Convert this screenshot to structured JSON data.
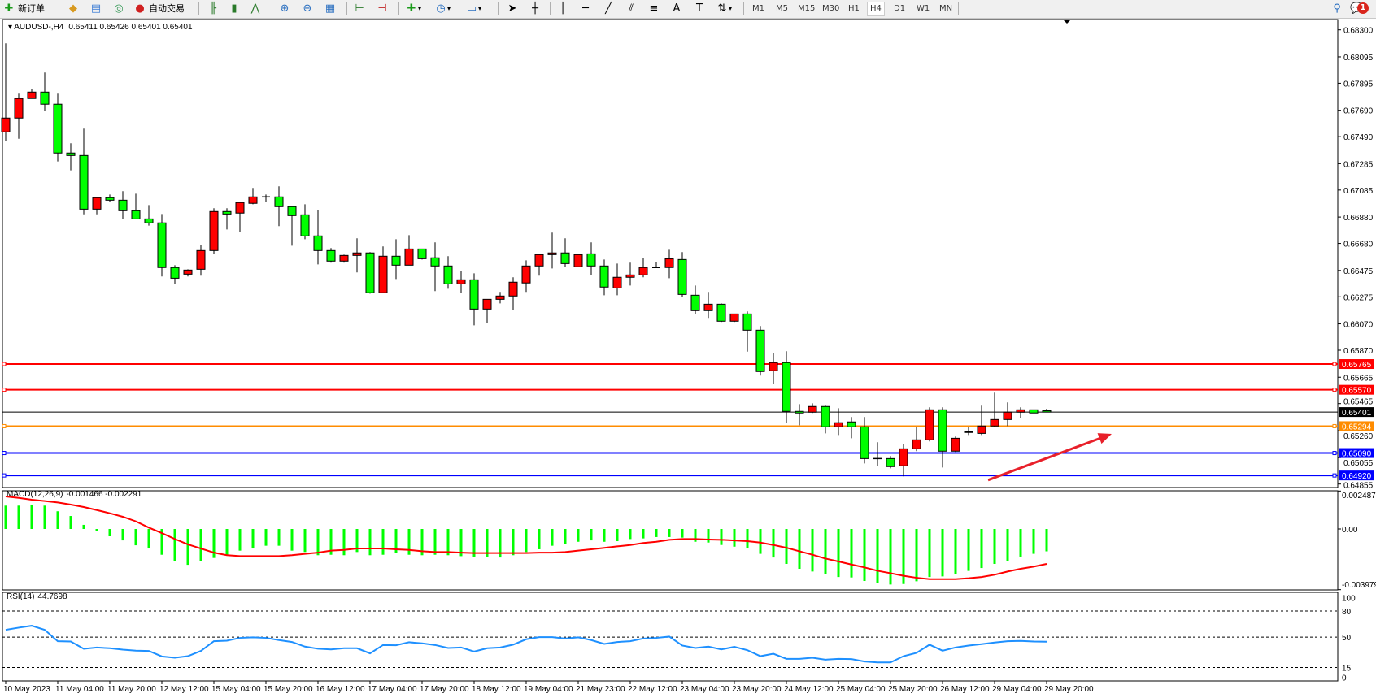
{
  "toolbar": {
    "new_order_label": "新订单",
    "auto_trading_label": "自动交易",
    "icons": [
      "new-order-icon",
      "market-watch-icon",
      "data-window-icon",
      "navigator-icon",
      "auto-trading-icon",
      "bar-chart-icon",
      "candlestick-icon",
      "line-chart-icon",
      "zoom-in-icon",
      "zoom-out-icon",
      "tile-windows-icon",
      "chart-shift-icon",
      "autoscroll-icon",
      "indicators-icon",
      "periods-icon",
      "templates-icon",
      "cursor-icon",
      "crosshair-icon",
      "vertical-line-icon",
      "horizontal-line-icon",
      "trendline-icon",
      "equidistant-channel-icon",
      "fibonacci-icon",
      "text-icon",
      "text-label-icon",
      "arrows-icon",
      "search-icon",
      "notifications-icon"
    ],
    "timeframes": [
      "M1",
      "M5",
      "M15",
      "M30",
      "H1",
      "H4",
      "D1",
      "W1",
      "MN"
    ],
    "active_timeframe": "H4",
    "notification_count": "1"
  },
  "chart": {
    "symbol": "AUDUSD-,H4",
    "header_values": "0.65411 0.65426 0.65401 0.65401",
    "colors": {
      "bull": "#ff0000",
      "bear": "#00ff00",
      "grid": "#000000"
    }
  },
  "chart_data": [
    {
      "type": "candlestick",
      "title": "AUDUSD-,H4",
      "ylim": [
        0.64855,
        0.683
      ],
      "y_ticks": [
        "0.68300",
        "0.68095",
        "0.67895",
        "0.67690",
        "0.67490",
        "0.67285",
        "0.67085",
        "0.66880",
        "0.66680",
        "0.66475",
        "0.66275",
        "0.66070",
        "0.65870",
        "0.65665",
        "0.65465",
        "0.65260",
        "0.65055",
        "0.64855"
      ],
      "x_ticks": [
        "10 May 2023",
        "11 May 04:00",
        "11 May 20:00",
        "12 May 12:00",
        "15 May 04:00",
        "15 May 20:00",
        "16 May 12:00",
        "17 May 04:00",
        "17 May 20:00",
        "18 May 12:00",
        "19 May 04:00",
        "21 May 23:00",
        "22 May 12:00",
        "23 May 04:00",
        "23 May 20:00",
        "24 May 12:00",
        "25 May 04:00",
        "25 May 20:00",
        "26 May 12:00",
        "29 May 04:00",
        "29 May 20:00"
      ],
      "ohlc": [
        [
          0.67526,
          0.68198,
          0.67458,
          0.67631
        ],
        [
          0.67631,
          0.67816,
          0.67474,
          0.67779
        ],
        [
          0.67779,
          0.67853,
          0.67779,
          0.67828
        ],
        [
          0.67828,
          0.67976,
          0.67684,
          0.67736
        ],
        [
          0.67736,
          0.67816,
          0.67302,
          0.67366
        ],
        [
          0.67366,
          0.6744,
          0.67234,
          0.67347
        ],
        [
          0.67347,
          0.67551,
          0.66901,
          0.6694
        ],
        [
          0.6694,
          0.67033,
          0.66901,
          0.67027
        ],
        [
          0.67027,
          0.67051,
          0.66993,
          0.67008
        ],
        [
          0.67008,
          0.67076,
          0.66864,
          0.66928
        ],
        [
          0.66928,
          0.67057,
          0.66866,
          0.66866
        ],
        [
          0.66866,
          0.66971,
          0.66815,
          0.66836
        ],
        [
          0.66836,
          0.66903,
          0.66429,
          0.66497
        ],
        [
          0.66497,
          0.66515,
          0.66373,
          0.66416
        ],
        [
          0.66447,
          0.66484,
          0.66429,
          0.66478
        ],
        [
          0.66484,
          0.66669,
          0.66435,
          0.66626
        ],
        [
          0.66626,
          0.66947,
          0.66601,
          0.66922
        ],
        [
          0.66922,
          0.66947,
          0.66786,
          0.66903
        ],
        [
          0.6691,
          0.66996,
          0.66768,
          0.6699
        ],
        [
          0.66984,
          0.67101,
          0.66977,
          0.67033
        ],
        [
          0.67033,
          0.67051,
          0.66996,
          0.67033
        ],
        [
          0.67033,
          0.67113,
          0.66811,
          0.66959
        ],
        [
          0.66959,
          0.66959,
          0.66663,
          0.66891
        ],
        [
          0.66897,
          0.66977,
          0.66712,
          0.66737
        ],
        [
          0.66737,
          0.66934,
          0.66521,
          0.66626
        ],
        [
          0.66626,
          0.66645,
          0.66534,
          0.66546
        ],
        [
          0.66546,
          0.66595,
          0.66534,
          0.66589
        ],
        [
          0.66589,
          0.66719,
          0.6646,
          0.66608
        ],
        [
          0.66608,
          0.66614,
          0.66299,
          0.66306
        ],
        [
          0.66306,
          0.66657,
          0.66306,
          0.66583
        ],
        [
          0.66583,
          0.66712,
          0.6641,
          0.66515
        ],
        [
          0.66515,
          0.66743,
          0.66515,
          0.66638
        ],
        [
          0.66638,
          0.66638,
          0.66558,
          0.66564
        ],
        [
          0.66571,
          0.66688,
          0.66318,
          0.66509
        ],
        [
          0.66509,
          0.66583,
          0.66336,
          0.66373
        ],
        [
          0.66373,
          0.66472,
          0.66306,
          0.66404
        ],
        [
          0.66404,
          0.66453,
          0.66059,
          0.66182
        ],
        [
          0.66182,
          0.66256,
          0.66078,
          0.66256
        ],
        [
          0.66256,
          0.66312,
          0.66225,
          0.66281
        ],
        [
          0.66281,
          0.66423,
          0.66176,
          0.66386
        ],
        [
          0.6638,
          0.66552,
          0.66312,
          0.66509
        ],
        [
          0.66509,
          0.66601,
          0.66435,
          0.66595
        ],
        [
          0.66595,
          0.66762,
          0.6649,
          0.66608
        ],
        [
          0.66608,
          0.66719,
          0.66503,
          0.66527
        ],
        [
          0.66503,
          0.66601,
          0.66503,
          0.66595
        ],
        [
          0.66601,
          0.66688,
          0.66441,
          0.66509
        ],
        [
          0.66509,
          0.66558,
          0.66287,
          0.66349
        ],
        [
          0.66342,
          0.66527,
          0.66287,
          0.66423
        ],
        [
          0.66423,
          0.66534,
          0.66361,
          0.66441
        ],
        [
          0.66441,
          0.66571,
          0.66423,
          0.66497
        ],
        [
          0.66497,
          0.6654,
          0.66497,
          0.66497
        ],
        [
          0.66497,
          0.66632,
          0.66416,
          0.66564
        ],
        [
          0.66558,
          0.66614,
          0.66275,
          0.66293
        ],
        [
          0.66287,
          0.66361,
          0.66145,
          0.6617
        ],
        [
          0.6617,
          0.66312,
          0.66115,
          0.66219
        ],
        [
          0.66219,
          0.66225,
          0.66084,
          0.6609
        ],
        [
          0.6609,
          0.66145,
          0.66084,
          0.66145
        ],
        [
          0.66145,
          0.66164,
          0.65859,
          0.66022
        ],
        [
          0.66022,
          0.66053,
          0.65677,
          0.65708
        ],
        [
          0.65714,
          0.6585,
          0.65615,
          0.65776
        ],
        [
          0.65776,
          0.65862,
          0.6532,
          0.65406
        ],
        [
          0.65406,
          0.65461,
          0.65301,
          0.65394
        ],
        [
          0.654,
          0.65467,
          0.65394,
          0.65443
        ],
        [
          0.65443,
          0.65449,
          0.65239,
          0.65289
        ],
        [
          0.65289,
          0.6543,
          0.65227,
          0.6532
        ],
        [
          0.65326,
          0.65363,
          0.65202,
          0.65289
        ],
        [
          0.65289,
          0.65363,
          0.65011,
          0.65048
        ],
        [
          0.65048,
          0.65172,
          0.64993,
          0.65048
        ],
        [
          0.65048,
          0.65067,
          0.64974,
          0.64987
        ],
        [
          0.64993,
          0.65159,
          0.64913,
          0.65122
        ],
        [
          0.65122,
          0.65289,
          0.65104,
          0.6519
        ],
        [
          0.6519,
          0.65437,
          0.65178,
          0.65418
        ],
        [
          0.65418,
          0.65437,
          0.6498,
          0.65104
        ],
        [
          0.65104,
          0.65215,
          0.65098,
          0.65202
        ],
        [
          0.65246,
          0.65289,
          0.65227,
          0.65252
        ],
        [
          0.65239,
          0.65449,
          0.65227,
          0.65295
        ],
        [
          0.65295,
          0.65548,
          0.65289,
          0.65344
        ],
        [
          0.65344,
          0.65474,
          0.65295,
          0.654
        ],
        [
          0.654,
          0.65437,
          0.65357,
          0.65418
        ],
        [
          0.65418,
          0.65418,
          0.65394,
          0.65394
        ],
        [
          0.65411,
          0.65426,
          0.65401,
          0.65401
        ]
      ],
      "horizontal_lines": [
        {
          "price": "0.65765",
          "color": "#ff0000"
        },
        {
          "price": "0.65570",
          "color": "#ff0000"
        },
        {
          "price": "0.65401",
          "color": "#000000"
        },
        {
          "price": "0.65294",
          "color": "#ff8c00"
        },
        {
          "price": "0.65090",
          "color": "#0000ff"
        },
        {
          "price": "0.64920",
          "color": "#0000ff"
        }
      ],
      "annotations": [
        {
          "type": "arrow",
          "color": "#e8202a",
          "from": {
            "bar": 75.5,
            "price": 0.64885
          },
          "to": {
            "bar": 85,
            "price": 0.65235
          }
        }
      ]
    },
    {
      "type": "bar+line",
      "title": "MACD(12,26,9)",
      "header_values": "-0.001466 -0.002291",
      "y_ticks": [
        "0.002487",
        "0.00",
        "-0.003979"
      ],
      "ylim": [
        -0.003979,
        0.002487
      ],
      "series": [
        {
          "kind": "histogram",
          "color": "#00ff00",
          "values": [
            0.00153,
            0.00153,
            0.0016,
            0.00153,
            0.00116,
            0.00085,
            0.00027,
            -0.00012,
            -0.00048,
            -0.00075,
            -0.00107,
            -0.00128,
            -0.00169,
            -0.00208,
            -0.00235,
            -0.00213,
            -0.0019,
            -0.00169,
            -0.00142,
            -0.00128,
            -0.0011,
            -0.0011,
            -0.00142,
            -0.00151,
            -0.00172,
            -0.00169,
            -0.00172,
            -0.00151,
            -0.00172,
            -0.00169,
            -0.00158,
            -0.00169,
            -0.00172,
            -0.00169,
            -0.00172,
            -0.00178,
            -0.00181,
            -0.00181,
            -0.00187,
            -0.00172,
            -0.00151,
            -0.00133,
            -0.0011,
            -0.00096,
            -0.00084,
            -0.00075,
            -0.00084,
            -0.0008,
            -0.00066,
            -0.00062,
            -0.00053,
            -0.00053,
            -0.00057,
            -0.00084,
            -0.00089,
            -0.00105,
            -0.00116,
            -0.00128,
            -0.00163,
            -0.00187,
            -0.00229,
            -0.00261,
            -0.00279,
            -0.00297,
            -0.00315,
            -0.00318,
            -0.00341,
            -0.00355,
            -0.00364,
            -0.00361,
            -0.00343,
            -0.00315,
            -0.00311,
            -0.00293,
            -0.00275,
            -0.00256,
            -0.00229,
            -0.00208,
            -0.00181,
            -0.00163,
            -0.001466
          ]
        },
        {
          "kind": "signal",
          "color": "#ff0000",
          "values": [
            0.00213,
            0.00204,
            0.00192,
            0.00183,
            0.00174,
            0.0016,
            0.00144,
            0.00124,
            0.00103,
            0.0008,
            0.0005,
            9e-05,
            -0.00027,
            -0.00066,
            -0.00101,
            -0.00128,
            -0.00155,
            -0.00172,
            -0.00178,
            -0.00178,
            -0.00178,
            -0.00178,
            -0.00172,
            -0.00163,
            -0.00155,
            -0.00142,
            -0.00137,
            -0.00128,
            -0.00128,
            -0.00128,
            -0.00133,
            -0.00137,
            -0.00146,
            -0.00151,
            -0.00151,
            -0.00155,
            -0.00158,
            -0.00158,
            -0.00158,
            -0.00158,
            -0.00158,
            -0.00155,
            -0.00155,
            -0.00151,
            -0.00142,
            -0.00133,
            -0.00124,
            -0.00114,
            -0.00105,
            -0.00092,
            -0.00084,
            -0.00071,
            -0.00066,
            -0.00066,
            -0.00069,
            -0.00071,
            -0.00075,
            -0.0008,
            -0.00089,
            -0.00105,
            -0.00123,
            -0.00146,
            -0.00169,
            -0.00194,
            -0.00213,
            -0.00233,
            -0.00252,
            -0.00274,
            -0.0029,
            -0.00307,
            -0.0032,
            -0.00329,
            -0.00329,
            -0.00329,
            -0.00323,
            -0.00315,
            -0.003,
            -0.00279,
            -0.00261,
            -0.00247,
            -0.002291
          ]
        }
      ]
    },
    {
      "type": "line",
      "title": "RSI(14)",
      "header_values": "44.7698",
      "ylim": [
        0,
        100
      ],
      "y_ticks": [
        "100",
        "80",
        "50",
        "15",
        "0"
      ],
      "levels": [
        80,
        50,
        15
      ],
      "series": [
        {
          "color": "#1e90ff",
          "values": [
            58.4,
            60.9,
            63.1,
            58.4,
            45.3,
            45.0,
            36.6,
            38.1,
            37.2,
            35.6,
            34.4,
            34.1,
            27.8,
            26.3,
            28.1,
            34.1,
            45.3,
            45.9,
            49.1,
            49.7,
            49.1,
            46.6,
            44.4,
            39.1,
            36.6,
            35.9,
            37.2,
            37.2,
            31.3,
            40.9,
            40.6,
            44.1,
            42.8,
            40.9,
            37.5,
            38.1,
            33.4,
            37.2,
            38.1,
            41.3,
            47.5,
            50.0,
            50.0,
            48.4,
            49.7,
            46.6,
            42.2,
            44.4,
            45.3,
            48.4,
            49.1,
            50.6,
            40.3,
            37.5,
            39.1,
            35.9,
            38.8,
            35.0,
            28.1,
            30.9,
            25.0,
            25.0,
            26.3,
            24.1,
            25.0,
            24.7,
            21.9,
            20.9,
            20.9,
            28.1,
            31.9,
            41.3,
            34.4,
            38.1,
            40.3,
            41.9,
            43.8,
            45.3,
            45.6,
            45.0,
            44.7698
          ]
        }
      ]
    }
  ]
}
